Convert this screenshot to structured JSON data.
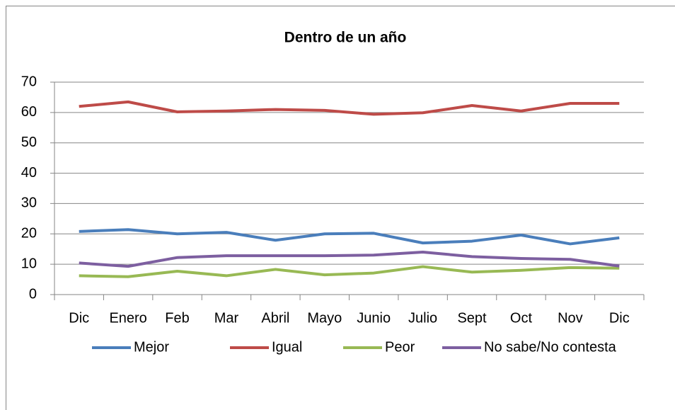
{
  "chart_data": {
    "type": "line",
    "title": "Dentro de un año",
    "categories": [
      "Dic",
      "Enero",
      "Feb",
      "Mar",
      "Abril",
      "Mayo",
      "Junio",
      "Julio",
      "Sept",
      "Oct",
      "Nov",
      "Dic"
    ],
    "series": [
      {
        "name": "Mejor",
        "color": "#4a7ebb",
        "values": [
          20.8,
          21.4,
          20,
          20.5,
          17.9,
          20,
          20.2,
          17,
          17.6,
          19.6,
          16.7,
          18.7
        ]
      },
      {
        "name": "Igual",
        "color": "#be4b48",
        "values": [
          62,
          63.5,
          60.2,
          60.5,
          61,
          60.7,
          59.4,
          59.9,
          62.3,
          60.5,
          63,
          63
        ]
      },
      {
        "name": "Peor",
        "color": "#98b954",
        "values": [
          6.2,
          5.9,
          7.7,
          6.2,
          8.3,
          6.5,
          7.1,
          9.2,
          7.4,
          8,
          8.9,
          8.7
        ]
      },
      {
        "name": "No sabe/No contesta",
        "color": "#7d5fa0",
        "values": [
          10.4,
          9.3,
          12.2,
          12.8,
          12.8,
          12.8,
          13,
          14,
          12.5,
          11.9,
          11.6,
          9.4
        ]
      }
    ],
    "ylim": [
      0,
      70
    ],
    "yticks": [
      0,
      10,
      20,
      30,
      40,
      50,
      60,
      70
    ],
    "grid": true
  }
}
